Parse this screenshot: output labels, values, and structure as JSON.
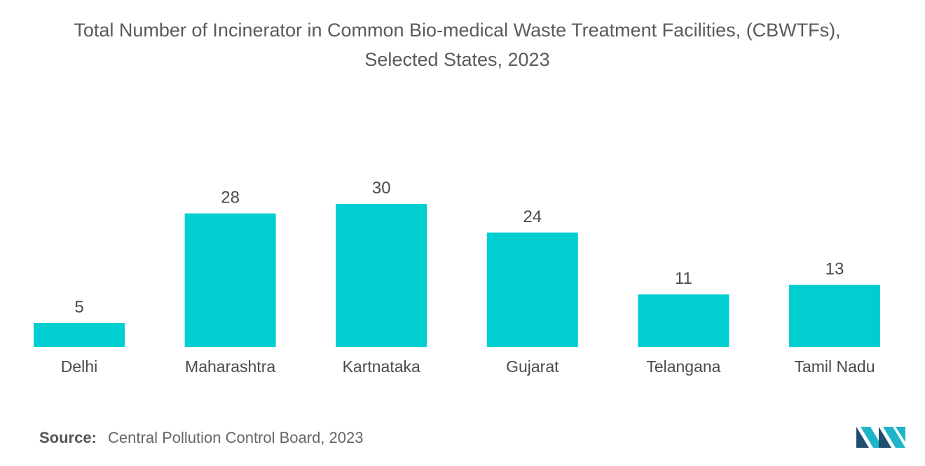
{
  "header": {
    "title_line1": "Total Number of Incinerator in Common Bio-medical Waste Treatment Facilities, (CBWTFs),",
    "title_line2": "Selected States, 2023"
  },
  "footer": {
    "source_label": "Source:",
    "source_text": "Central Pollution Control Board, 2023"
  },
  "logo": {
    "icon": "mordor-intelligence-logo-icon"
  },
  "colors": {
    "bar": "#00CED1",
    "logo_dark": "#1f4e6e",
    "logo_light": "#1fb5c9"
  },
  "chart_data": {
    "type": "bar",
    "title": "Total Number of Incinerator in Common Bio-medical Waste Treatment Facilities, (CBWTFs), Selected States, 2023",
    "categories": [
      "Delhi",
      "Maharashtra",
      "Kartnataka",
      "Gujarat",
      "Telangana",
      "Tamil Nadu"
    ],
    "values": [
      5,
      28,
      30,
      24,
      11,
      13
    ],
    "data_labels": [
      "5",
      "28",
      "30",
      "24",
      "11",
      "13"
    ],
    "xlabel": "",
    "ylabel": "",
    "ylim": [
      0,
      30
    ],
    "grid": false,
    "legend": "none"
  }
}
